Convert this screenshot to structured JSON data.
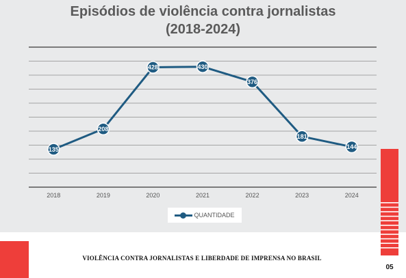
{
  "chart_data": {
    "type": "line",
    "title": "Episódios de violência contra jornalistas",
    "subtitle": "(2018-2024)",
    "categories": [
      "2018",
      "2019",
      "2020",
      "2021",
      "2022",
      "2023",
      "2024"
    ],
    "series": [
      {
        "name": "QUANTIDADE",
        "values": [
          135,
          208,
          428,
          430,
          376,
          181,
          144
        ]
      }
    ],
    "data_labels": [
      "135",
      "208",
      "428",
      "430",
      "376",
      "181",
      "144"
    ],
    "ylim": [
      0,
      500
    ],
    "grid": true,
    "legend": "bottom",
    "series_color": "#1f5b82"
  },
  "footer": {
    "text": "VIOLÊNCIA CONTRA JORNALISTAS E LIBERDADE DE IMPRENSA NO BRASIL",
    "page_number": "05"
  },
  "colors": {
    "accent_red": "#ee3e3a",
    "panel_background": "#e9eaeb",
    "grid_line": "#8c8c8c"
  }
}
